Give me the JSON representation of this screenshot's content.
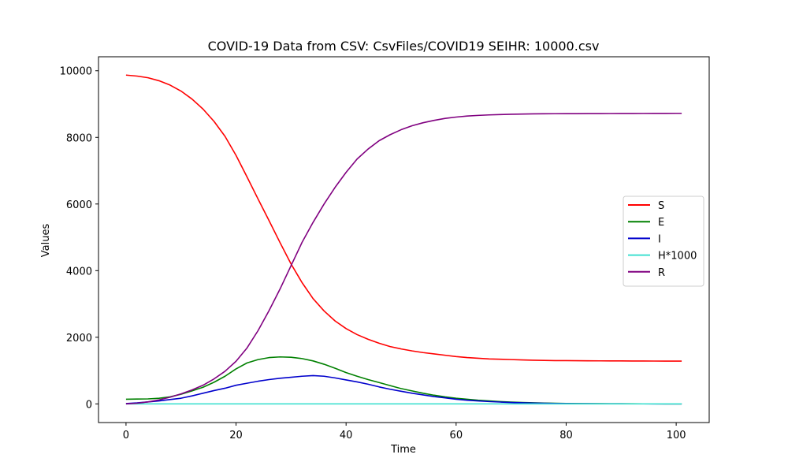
{
  "chart_data": {
    "type": "line",
    "title": "COVID-19 Data from CSV: CsvFiles/COVID19 SEIHR: 10000.csv",
    "xlabel": "Time",
    "ylabel": "Values",
    "xlim": [
      -5,
      106
    ],
    "ylim": [
      -560,
      10420
    ],
    "xticks": [
      0,
      20,
      40,
      60,
      80,
      100
    ],
    "yticks": [
      0,
      2000,
      4000,
      6000,
      8000,
      10000
    ],
    "grid": false,
    "legend": {
      "position": "center-right"
    },
    "x": [
      0,
      2,
      4,
      6,
      8,
      10,
      12,
      14,
      16,
      18,
      20,
      22,
      24,
      26,
      28,
      30,
      32,
      34,
      36,
      38,
      40,
      42,
      44,
      46,
      48,
      50,
      52,
      54,
      56,
      58,
      60,
      62,
      64,
      66,
      68,
      70,
      72,
      74,
      76,
      78,
      80,
      82,
      84,
      86,
      88,
      90,
      92,
      94,
      96,
      98,
      100,
      101
    ],
    "series": [
      {
        "name": "S",
        "color": "#ff0000",
        "values": [
          9870,
          9840,
          9790,
          9700,
          9570,
          9390,
          9150,
          8850,
          8480,
          8030,
          7460,
          6810,
          6150,
          5500,
          4840,
          4200,
          3640,
          3160,
          2790,
          2490,
          2260,
          2080,
          1940,
          1820,
          1720,
          1650,
          1590,
          1540,
          1500,
          1460,
          1420,
          1390,
          1370,
          1350,
          1340,
          1330,
          1320,
          1310,
          1305,
          1300,
          1298,
          1296,
          1294,
          1292,
          1290,
          1289,
          1288,
          1287,
          1286,
          1285,
          1285,
          1285
        ]
      },
      {
        "name": "E",
        "color": "#008000",
        "values": [
          140,
          145,
          150,
          170,
          210,
          290,
          390,
          500,
          650,
          830,
          1050,
          1230,
          1330,
          1390,
          1410,
          1400,
          1360,
          1290,
          1190,
          1070,
          940,
          830,
          730,
          640,
          550,
          460,
          390,
          320,
          260,
          210,
          170,
          140,
          110,
          90,
          70,
          55,
          42,
          32,
          24,
          18,
          14,
          10,
          8,
          6,
          5,
          4,
          3,
          2,
          2,
          1,
          1,
          1
        ]
      },
      {
        "name": "I",
        "color": "#0000cc",
        "values": [
          10,
          30,
          60,
          90,
          130,
          170,
          240,
          320,
          400,
          470,
          560,
          620,
          680,
          730,
          770,
          800,
          830,
          850,
          830,
          780,
          720,
          660,
          590,
          510,
          440,
          380,
          320,
          270,
          220,
          180,
          140,
          110,
          90,
          70,
          55,
          42,
          32,
          24,
          18,
          14,
          10,
          8,
          6,
          5,
          4,
          3,
          2,
          2,
          1,
          1,
          1,
          1
        ]
      },
      {
        "name": "H*1000",
        "color": "#40e0d0",
        "values": [
          0,
          0,
          0,
          0,
          0,
          0,
          0,
          0,
          0,
          0,
          0,
          0,
          0,
          0,
          0,
          0,
          0,
          0,
          0,
          0,
          0,
          0,
          0,
          0,
          0,
          0,
          0,
          0,
          0,
          0,
          0,
          0,
          0,
          0,
          0,
          0,
          0,
          0,
          0,
          0,
          0,
          0,
          0,
          0,
          0,
          0,
          0,
          0,
          0,
          0,
          0,
          0
        ]
      },
      {
        "name": "R",
        "color": "#800080",
        "values": [
          0,
          20,
          60,
          120,
          200,
          300,
          420,
          560,
          750,
          980,
          1280,
          1680,
          2200,
          2800,
          3450,
          4150,
          4850,
          5450,
          6000,
          6500,
          6950,
          7350,
          7650,
          7900,
          8080,
          8230,
          8350,
          8440,
          8510,
          8570,
          8610,
          8640,
          8660,
          8675,
          8685,
          8695,
          8700,
          8705,
          8708,
          8710,
          8712,
          8713,
          8714,
          8715,
          8716,
          8717,
          8718,
          8719,
          8720,
          8721,
          8722,
          8722
        ]
      }
    ]
  }
}
